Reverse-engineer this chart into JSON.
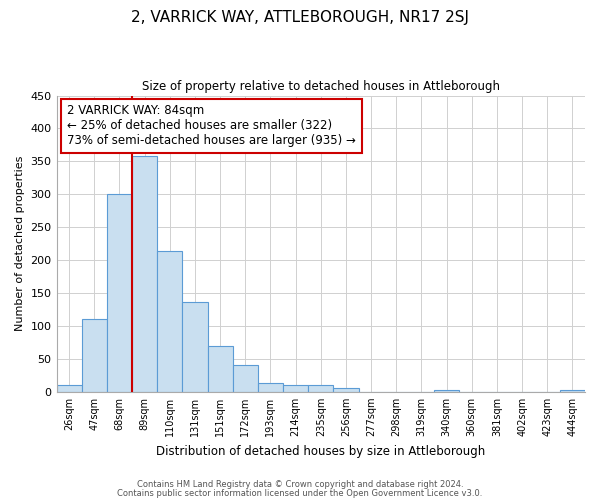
{
  "title": "2, VARRICK WAY, ATTLEBOROUGH, NR17 2SJ",
  "subtitle": "Size of property relative to detached houses in Attleborough",
  "xlabel": "Distribution of detached houses by size in Attleborough",
  "ylabel": "Number of detached properties",
  "bar_values": [
    10,
    110,
    300,
    358,
    214,
    136,
    70,
    40,
    13,
    11,
    10,
    6,
    0,
    0,
    0,
    2,
    0,
    0,
    0,
    0,
    3
  ],
  "bin_labels": [
    "26sqm",
    "47sqm",
    "68sqm",
    "89sqm",
    "110sqm",
    "131sqm",
    "151sqm",
    "172sqm",
    "193sqm",
    "214sqm",
    "235sqm",
    "256sqm",
    "277sqm",
    "298sqm",
    "319sqm",
    "340sqm",
    "360sqm",
    "381sqm",
    "402sqm",
    "423sqm",
    "444sqm"
  ],
  "bar_color": "#c9dff0",
  "bar_edge_color": "#5b9bd5",
  "vline_x": 2.5,
  "vline_color": "#cc0000",
  "annotation_text": "2 VARRICK WAY: 84sqm\n← 25% of detached houses are smaller (322)\n73% of semi-detached houses are larger (935) →",
  "annotation_box_edge": "#cc0000",
  "ylim": [
    0,
    450
  ],
  "yticks": [
    0,
    50,
    100,
    150,
    200,
    250,
    300,
    350,
    400,
    450
  ],
  "footer_line1": "Contains HM Land Registry data © Crown copyright and database right 2024.",
  "footer_line2": "Contains public sector information licensed under the Open Government Licence v3.0.",
  "background_color": "#ffffff",
  "grid_color": "#d0d0d0"
}
